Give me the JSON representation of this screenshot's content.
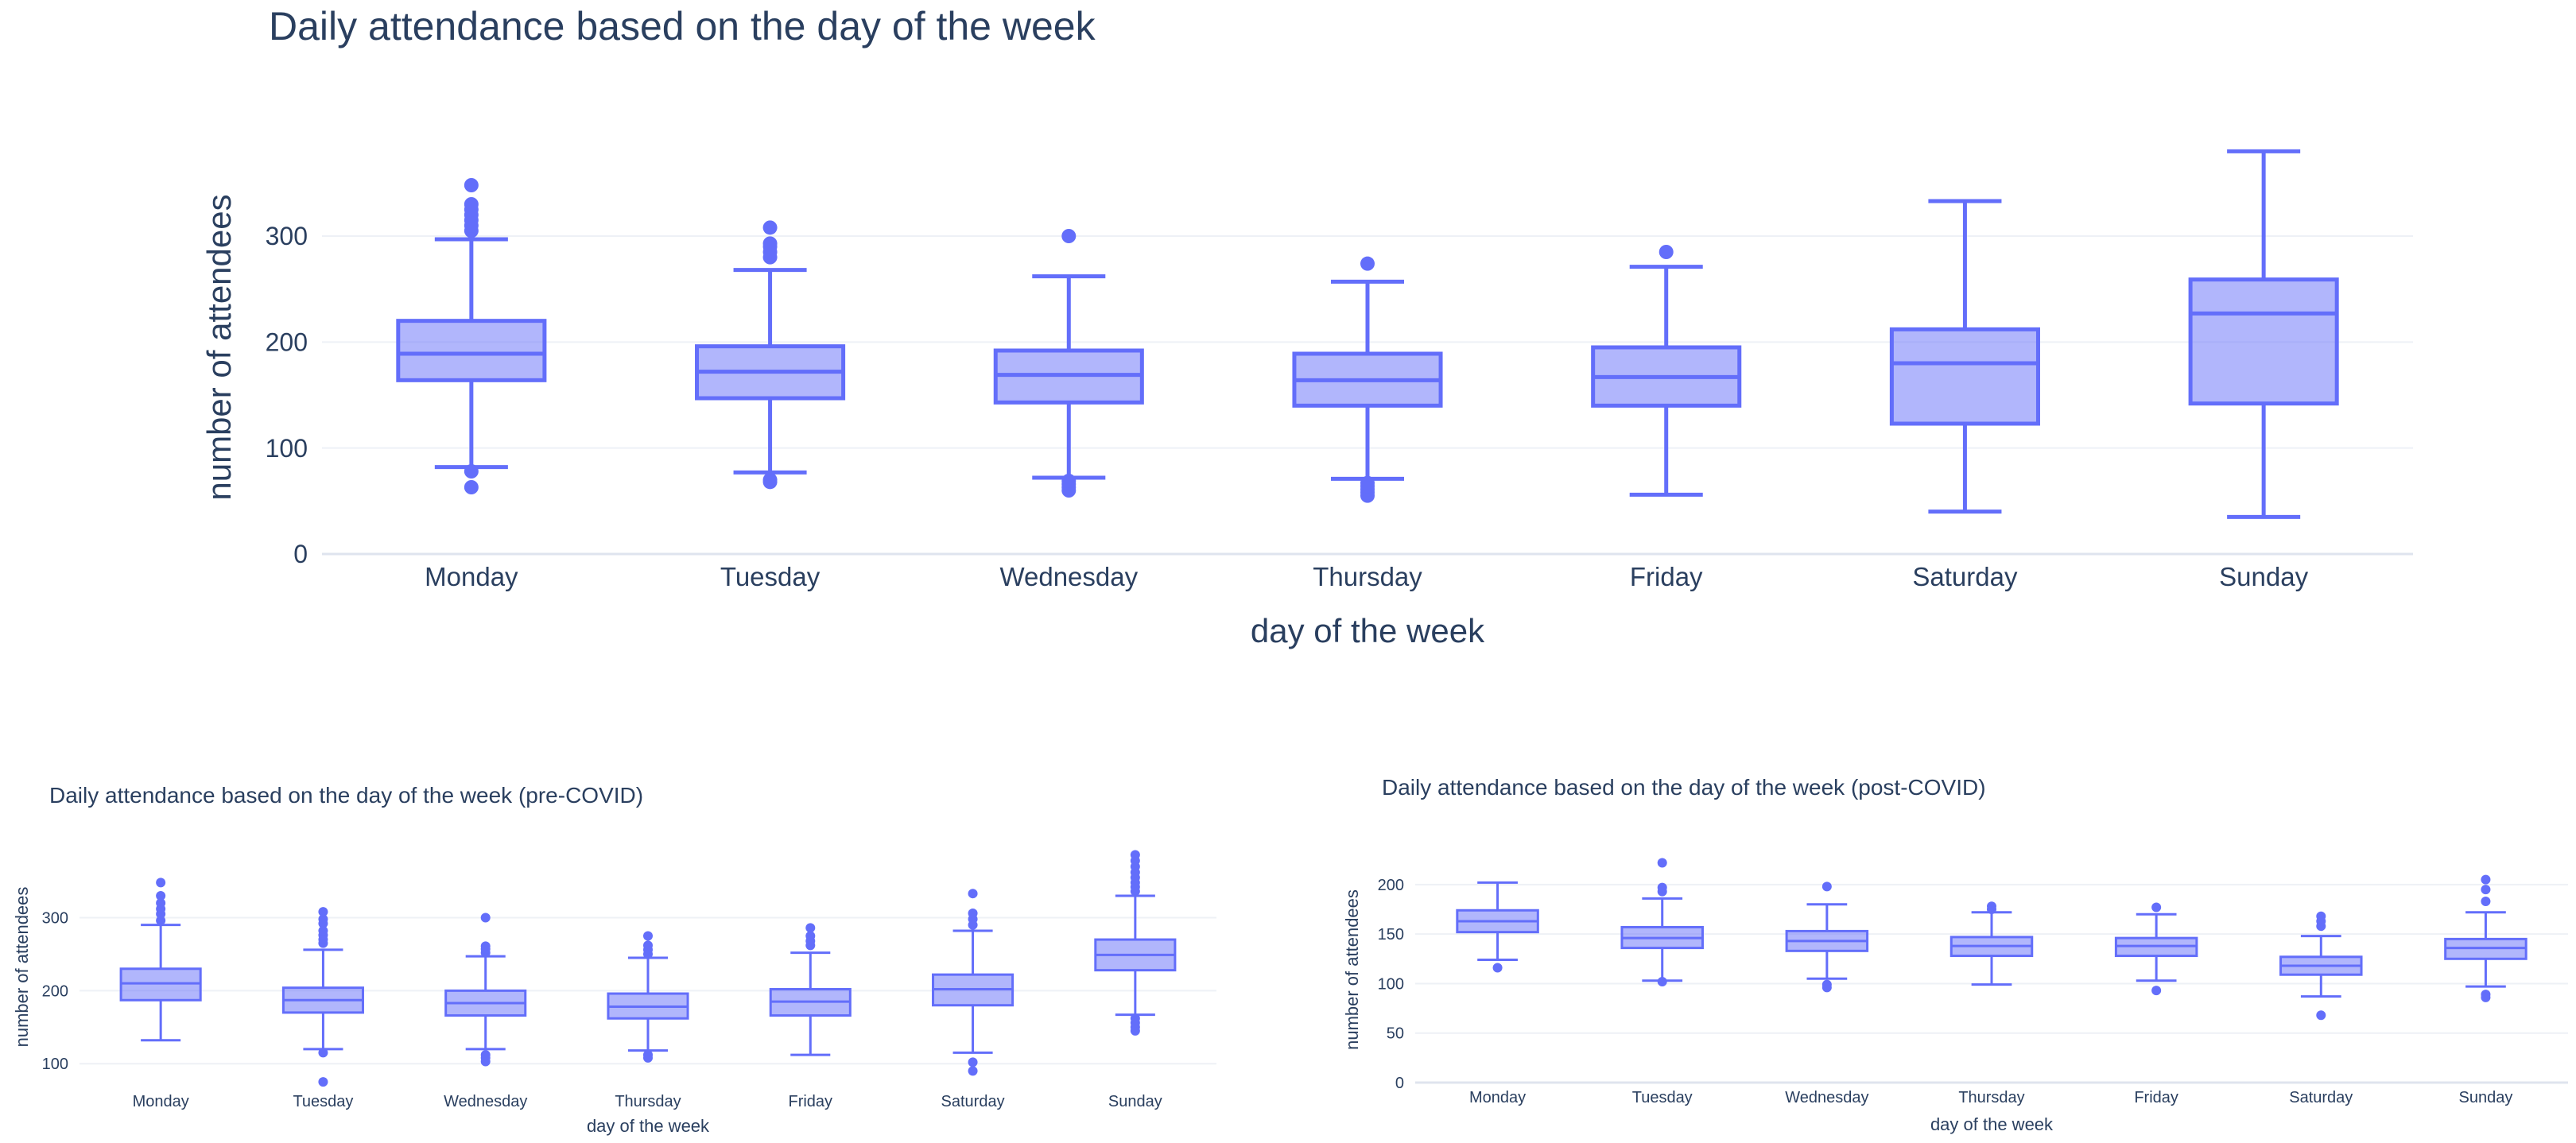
{
  "chart_data": [
    {
      "type": "box",
      "title": "Daily attendance based on the day of the week",
      "xlabel": "day of the week",
      "ylabel": "number of attendees",
      "ylim": [
        0,
        390
      ],
      "yticks": [
        0,
        100,
        200,
        300
      ],
      "grid": true,
      "legend": "none",
      "color": "#636efa",
      "categories": [
        "Monday",
        "Tuesday",
        "Wednesday",
        "Thursday",
        "Friday",
        "Saturday",
        "Sunday"
      ],
      "boxes": [
        {
          "min": 82,
          "q1": 164,
          "median": 189,
          "q3": 220,
          "max": 297,
          "outliers": [
            63,
            78,
            305,
            310,
            315,
            320,
            325,
            330,
            348
          ]
        },
        {
          "min": 77,
          "q1": 147,
          "median": 172,
          "q3": 196,
          "max": 268,
          "outliers": [
            68,
            70,
            280,
            285,
            290,
            293,
            308
          ]
        },
        {
          "min": 72,
          "q1": 143,
          "median": 169,
          "q3": 192,
          "max": 262,
          "outliers": [
            60,
            63,
            66,
            69,
            300
          ]
        },
        {
          "min": 71,
          "q1": 140,
          "median": 164,
          "q3": 189,
          "max": 257,
          "outliers": [
            55,
            58,
            61,
            64,
            67,
            274
          ]
        },
        {
          "min": 56,
          "q1": 140,
          "median": 167,
          "q3": 195,
          "max": 271,
          "outliers": [
            285
          ]
        },
        {
          "min": 40,
          "q1": 123,
          "median": 180,
          "q3": 212,
          "max": 333,
          "outliers": []
        },
        {
          "min": 35,
          "q1": 142,
          "median": 227,
          "q3": 259,
          "max": 380,
          "outliers": []
        }
      ]
    },
    {
      "type": "box",
      "title": "Daily attendance based on the day of the week (pre-COVID)",
      "xlabel": "day of the week",
      "ylabel": "number of attendees",
      "ylim": [
        73,
        392
      ],
      "yticks": [
        100,
        200,
        300
      ],
      "grid": true,
      "legend": "none",
      "color": "#636efa",
      "categories": [
        "Monday",
        "Tuesday",
        "Wednesday",
        "Thursday",
        "Friday",
        "Saturday",
        "Sunday"
      ],
      "boxes": [
        {
          "min": 132,
          "q1": 187,
          "median": 210,
          "q3": 230,
          "max": 290,
          "outliers": [
            296,
            305,
            312,
            320,
            330,
            348
          ]
        },
        {
          "min": 120,
          "q1": 170,
          "median": 187,
          "q3": 204,
          "max": 256,
          "outliers": [
            75,
            115,
            265,
            270,
            276,
            282,
            292,
            298,
            308
          ]
        },
        {
          "min": 120,
          "q1": 166,
          "median": 183,
          "q3": 200,
          "max": 247,
          "outliers": [
            103,
            108,
            112,
            252,
            257,
            261,
            300
          ]
        },
        {
          "min": 118,
          "q1": 162,
          "median": 178,
          "q3": 196,
          "max": 245,
          "outliers": [
            108,
            112,
            250,
            256,
            262,
            275
          ]
        },
        {
          "min": 112,
          "q1": 166,
          "median": 185,
          "q3": 202,
          "max": 252,
          "outliers": [
            262,
            268,
            275,
            286
          ]
        },
        {
          "min": 115,
          "q1": 180,
          "median": 202,
          "q3": 222,
          "max": 282,
          "outliers": [
            90,
            102,
            290,
            298,
            306,
            333
          ]
        },
        {
          "min": 167,
          "q1": 228,
          "median": 249,
          "q3": 270,
          "max": 330,
          "outliers": [
            145,
            150,
            156,
            162,
            336,
            342,
            348,
            355,
            362,
            370,
            378,
            386
          ]
        }
      ]
    },
    {
      "type": "box",
      "title": "Daily attendance based on the day of the week (post-COVID)",
      "xlabel": "day of the week",
      "ylabel": "number of attendees",
      "ylim": [
        0,
        228
      ],
      "yticks": [
        0,
        50,
        100,
        150,
        200
      ],
      "grid": true,
      "legend": "none",
      "color": "#636efa",
      "categories": [
        "Monday",
        "Tuesday",
        "Wednesday",
        "Thursday",
        "Friday",
        "Saturday",
        "Sunday"
      ],
      "boxes": [
        {
          "min": 124,
          "q1": 152,
          "median": 163,
          "q3": 174,
          "max": 202,
          "outliers": [
            116
          ]
        },
        {
          "min": 103,
          "q1": 136,
          "median": 146,
          "q3": 157,
          "max": 186,
          "outliers": [
            102,
            193,
            197,
            222
          ]
        },
        {
          "min": 105,
          "q1": 133,
          "median": 143,
          "q3": 153,
          "max": 180,
          "outliers": [
            96,
            99,
            198
          ]
        },
        {
          "min": 99,
          "q1": 128,
          "median": 138,
          "q3": 147,
          "max": 172,
          "outliers": [
            175,
            178
          ]
        },
        {
          "min": 103,
          "q1": 128,
          "median": 138,
          "q3": 146,
          "max": 170,
          "outliers": [
            93,
            177
          ]
        },
        {
          "min": 87,
          "q1": 109,
          "median": 118,
          "q3": 127,
          "max": 148,
          "outliers": [
            68,
            158,
            163,
            168
          ]
        },
        {
          "min": 97,
          "q1": 125,
          "median": 136,
          "q3": 145,
          "max": 172,
          "outliers": [
            86,
            89,
            183,
            195,
            205
          ]
        }
      ]
    }
  ]
}
